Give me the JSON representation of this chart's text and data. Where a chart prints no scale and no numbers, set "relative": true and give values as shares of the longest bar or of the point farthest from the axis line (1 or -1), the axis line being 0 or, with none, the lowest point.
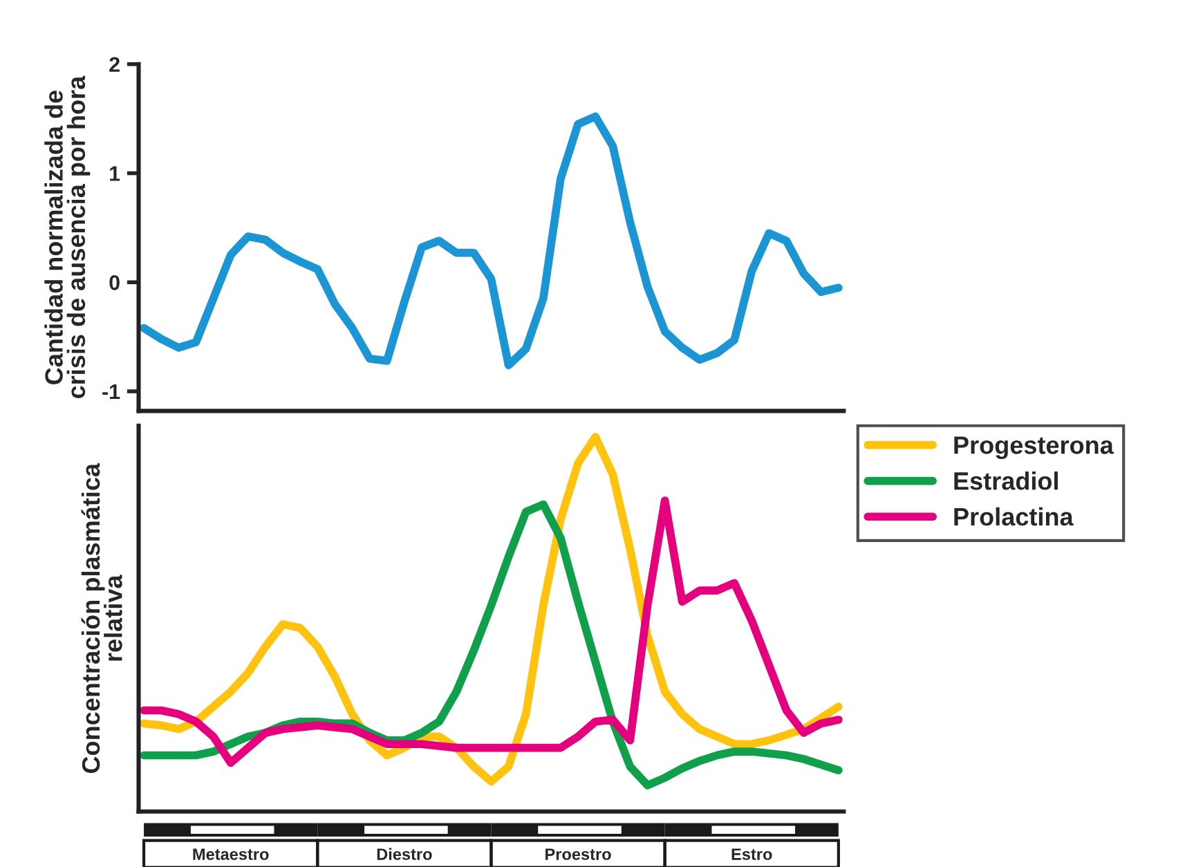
{
  "chart_data": [
    {
      "type": "line",
      "ylabel": "Cantidad normalizada de\ncrisis de ausencia por hora",
      "ylim": [
        -1.18,
        2
      ],
      "yticks": [
        -1,
        0,
        1,
        2
      ],
      "tick_labels": "y",
      "grid": false,
      "legend": false,
      "categories": [
        null,
        null,
        null,
        null,
        null,
        null,
        null,
        null,
        null,
        null,
        null,
        null,
        null,
        null,
        null,
        null,
        null,
        null,
        null,
        null,
        null,
        null,
        null,
        null,
        null,
        null,
        null,
        null,
        null,
        null,
        null,
        null,
        null,
        null,
        null,
        null,
        null,
        null,
        null,
        null,
        null
      ],
      "series": [
        {
          "color": "#1b95d4",
          "values": [
            -0.42,
            -0.52,
            -0.6,
            -0.55,
            -0.15,
            0.25,
            0.42,
            0.39,
            0.27,
            0.19,
            0.12,
            -0.2,
            -0.42,
            -0.7,
            -0.72,
            -0.18,
            0.32,
            0.38,
            0.27,
            0.27,
            0.03,
            -0.76,
            -0.61,
            -0.15,
            0.95,
            1.45,
            1.52,
            1.25,
            0.55,
            -0.04,
            -0.45,
            -0.6,
            -0.71,
            -0.65,
            -0.53,
            0.1,
            0.45,
            0.38,
            0.08,
            -0.09,
            -0.05
          ]
        }
      ]
    },
    {
      "type": "line",
      "relative": true,
      "ylabel": "Concentración plasmática\nrelativa",
      "grid": false,
      "legend": "top right",
      "categories": [
        null,
        null,
        null,
        null,
        null,
        "Metaestro",
        null,
        null,
        null,
        null,
        null,
        null,
        null,
        null,
        null,
        "Diestro",
        null,
        null,
        null,
        null,
        null,
        null,
        null,
        null,
        null,
        "Proestro",
        null,
        null,
        null,
        null,
        null,
        null,
        null,
        null,
        null,
        "Estro",
        null,
        null,
        null,
        null,
        null
      ],
      "series": [
        {
          "name": "Progesterona",
          "color": "#ffc20e",
          "values": [
            0.235,
            0.23,
            0.22,
            0.24,
            0.28,
            0.32,
            0.37,
            0.44,
            0.5,
            0.49,
            0.44,
            0.36,
            0.26,
            0.19,
            0.15,
            0.17,
            0.2,
            0.2,
            0.17,
            0.12,
            0.08,
            0.12,
            0.26,
            0.55,
            0.78,
            0.93,
            1.0,
            0.9,
            0.7,
            0.47,
            0.32,
            0.26,
            0.22,
            0.2,
            0.18,
            0.18,
            0.19,
            0.205,
            0.22,
            0.25,
            0.28
          ]
        },
        {
          "name": "Estradiol",
          "color": "#10a04b",
          "values": [
            0.15,
            0.15,
            0.15,
            0.15,
            0.16,
            0.18,
            0.2,
            0.21,
            0.23,
            0.24,
            0.24,
            0.235,
            0.235,
            0.21,
            0.19,
            0.19,
            0.21,
            0.24,
            0.32,
            0.43,
            0.55,
            0.68,
            0.8,
            0.82,
            0.73,
            0.56,
            0.4,
            0.24,
            0.12,
            0.07,
            0.09,
            0.115,
            0.135,
            0.15,
            0.16,
            0.16,
            0.155,
            0.15,
            0.14,
            0.125,
            0.11
          ]
        },
        {
          "name": "Prolactina",
          "color": "#e5007d",
          "values": [
            0.27,
            0.27,
            0.26,
            0.24,
            0.2,
            0.13,
            0.17,
            0.21,
            0.22,
            0.225,
            0.23,
            0.225,
            0.22,
            0.2,
            0.18,
            0.18,
            0.18,
            0.175,
            0.17,
            0.17,
            0.17,
            0.17,
            0.17,
            0.17,
            0.17,
            0.2,
            0.24,
            0.245,
            0.19,
            0.55,
            0.83,
            0.56,
            0.59,
            0.59,
            0.61,
            0.51,
            0.39,
            0.27,
            0.21,
            0.235,
            0.245
          ]
        }
      ]
    }
  ]
}
